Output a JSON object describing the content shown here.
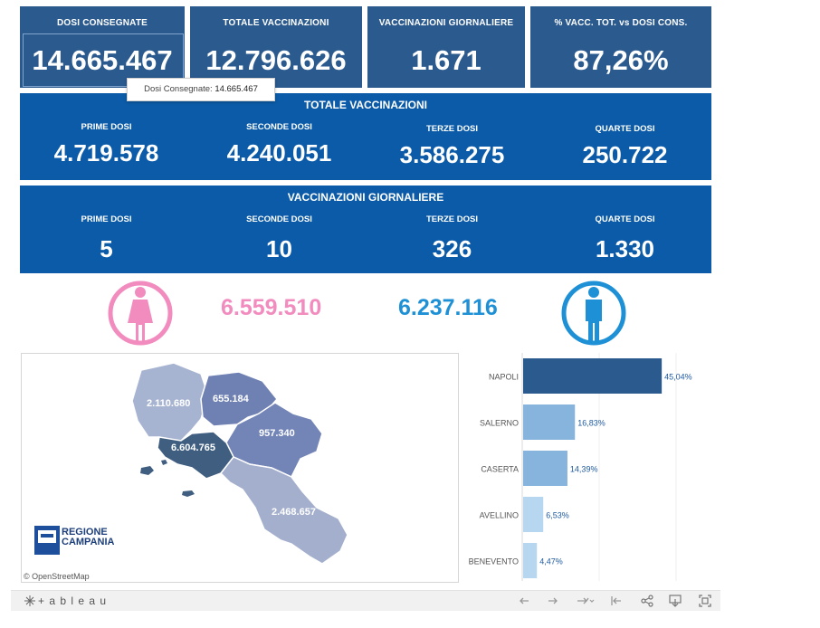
{
  "kpis": [
    {
      "label": "DOSI  CONSEGNATE",
      "value": "14.665.467"
    },
    {
      "label": "TOTALE VACCINAZIONI",
      "value": "12.796.626"
    },
    {
      "label": "VACCINAZIONI GIORNALIERE",
      "value": "1.671"
    },
    {
      "label": "% VACC. TOT. vs DOSI CONS.",
      "value": "87,26%"
    }
  ],
  "tooltip": {
    "label": "Dosi Consegnate:",
    "value": "14.665.467"
  },
  "totale": {
    "title": "TOTALE VACCINAZIONI",
    "cols": [
      {
        "label": "PRIME DOSI",
        "value": "4.719.578"
      },
      {
        "label": "SECONDE DOSI",
        "value": "4.240.051"
      },
      {
        "label": "TERZE DOSI",
        "value": "3.586.275"
      },
      {
        "label": "QUARTE DOSI",
        "value": "250.722"
      }
    ]
  },
  "giornaliere": {
    "title": "VACCINAZIONI GIORNALIERE",
    "cols": [
      {
        "label": "PRIME DOSI",
        "value": "5"
      },
      {
        "label": "SECONDE DOSI",
        "value": "10"
      },
      {
        "label": "TERZE DOSI",
        "value": "326"
      },
      {
        "label": "QUARTE DOSI",
        "value": "1.330"
      }
    ]
  },
  "gender": {
    "female_value": "6.559.510",
    "male_value": "6.237.116",
    "female_color": "#f28cbf",
    "male_color": "#1e90d6",
    "female_icon": "female-icon",
    "male_icon": "male-icon"
  },
  "map": {
    "regions": [
      {
        "name": "caserta",
        "value": "2.110.680",
        "color": "#a7b4d1"
      },
      {
        "name": "benevento",
        "value": "655.184",
        "color": "#6f80b3"
      },
      {
        "name": "avellino",
        "value": "957.340",
        "color": "#7384b7"
      },
      {
        "name": "napoli",
        "value": "6.604.765",
        "color": "#3f5e80"
      },
      {
        "name": "salerno",
        "value": "2.468.657",
        "color": "#a3afcd"
      }
    ],
    "logo_line1": "REGIONE",
    "logo_line2": "CAMPANIA",
    "attribution": "© OpenStreetMap"
  },
  "chart_data": {
    "type": "bar",
    "orientation": "horizontal",
    "categories": [
      "NAPOLI",
      "SALERNO",
      "CASERTA",
      "AVELLINO",
      "BENEVENTO"
    ],
    "values": [
      45.04,
      16.83,
      14.39,
      6.53,
      4.47
    ],
    "labels": [
      "45,04%",
      "16,83%",
      "14,39%",
      "6,53%",
      "4,47%"
    ],
    "colors": [
      "#2b5a8e",
      "#86b4dc",
      "#86b4dc",
      "#b7d6ef",
      "#b7d6ef"
    ],
    "xlim": [
      0,
      50
    ]
  },
  "footer": {
    "brand": "+ a b l e a u"
  }
}
